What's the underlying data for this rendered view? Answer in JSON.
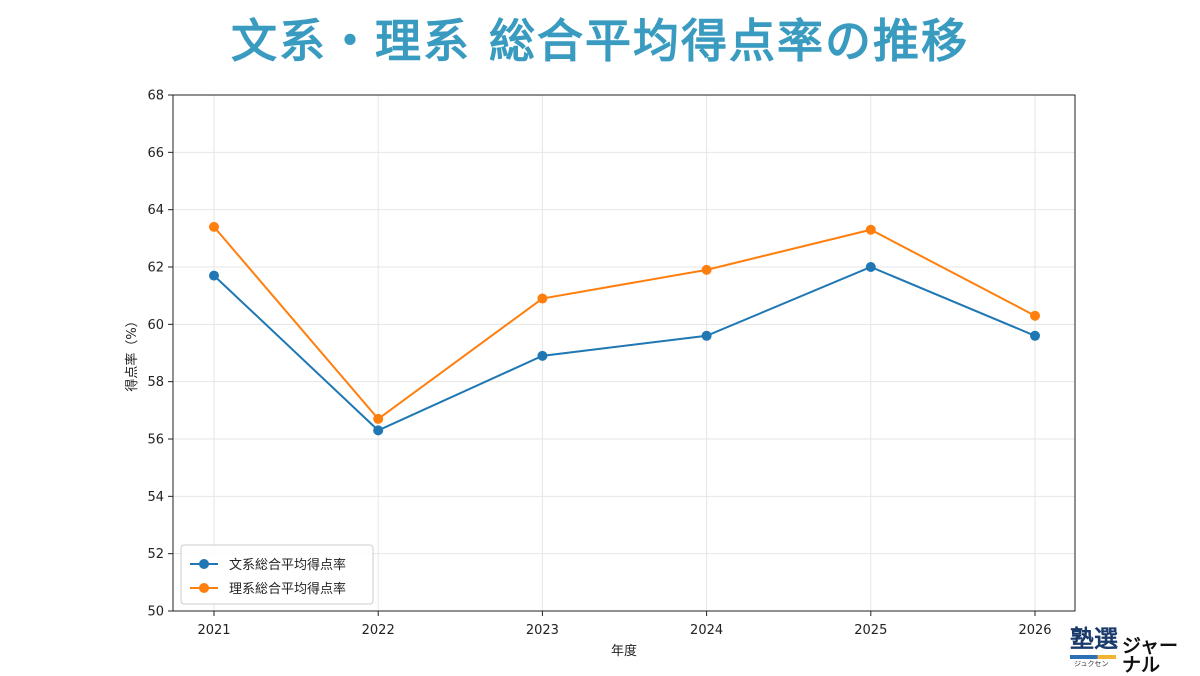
{
  "title": "文系・理系 総合平均得点率の推移",
  "chart_data": {
    "type": "line",
    "x": [
      "2021",
      "2022",
      "2023",
      "2024",
      "2025",
      "2026"
    ],
    "xlabel": "年度",
    "ylabel": "得点率（%）",
    "ylim": [
      50,
      68
    ],
    "yticks": [
      "50",
      "52",
      "54",
      "56",
      "58",
      "60",
      "62",
      "64",
      "66",
      "68"
    ],
    "grid": true,
    "legend_position": "lower-left",
    "series": [
      {
        "name": "文系総合平均得点率",
        "color": "#1f77b4",
        "values": [
          61.7,
          56.3,
          58.9,
          59.6,
          62.0,
          59.6
        ]
      },
      {
        "name": "理系総合平均得点率",
        "color": "#ff7f0e",
        "values": [
          63.4,
          56.7,
          60.9,
          61.9,
          63.3,
          60.3
        ]
      }
    ]
  },
  "logo": {
    "main": "塾選",
    "ruby": "ジュクセン",
    "sub": "ジャーナル"
  }
}
